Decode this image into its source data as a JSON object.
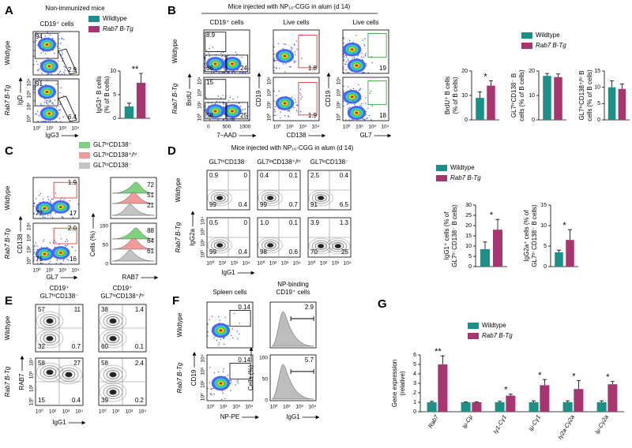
{
  "legend": [
    {
      "name": "Wildtype",
      "color": "#1c8f88"
    },
    {
      "name": "Rab7 B-Tg",
      "color": "#a6366f"
    }
  ],
  "log_ticks": [
    "10⁰",
    "10²",
    "10³",
    "10⁴"
  ],
  "row_labels": [
    "Wildtype",
    "Rab7 B-Tg"
  ],
  "A": {
    "letter": "A",
    "title": "Non-immunized mice",
    "gate": "CD19⁺ cells",
    "y_axis": "IgD",
    "x_axis": "IgG3",
    "plots": [
      [
        "94",
        "2.9"
      ],
      [
        "91",
        "6.4"
      ]
    ],
    "chart": {
      "y_label": [
        "IgG3⁺ B cells",
        "(% of B cells)"
      ],
      "ylim": [
        0,
        10
      ],
      "yticks": [
        0,
        5,
        10
      ],
      "values": [
        2.5,
        7.5
      ],
      "errors": [
        0.7,
        2.0
      ],
      "significance": "**"
    }
  },
  "B": {
    "letter": "B",
    "title": "Mice injected with NP₁₆-CGG in alum (d 14)",
    "columns": [
      {
        "gate": "CD19⁺ cells",
        "y_axis": "BrdU",
        "x_axis": "7–AAD",
        "x_ticks": [
          0,
          500,
          1000
        ],
        "plots": [
          [
            "8.9",
            "66",
            "24"
          ],
          [
            "15",
            "58",
            "25"
          ]
        ]
      },
      {
        "gate": "Live cells",
        "y_axis": "CD19",
        "x_axis": "CD138",
        "plots": [
          [
            "1.8"
          ],
          [
            "1.9"
          ]
        ]
      },
      {
        "gate": "Live cells",
        "y_axis": "CD19",
        "x_axis": "GL7",
        "plots": [
          [
            "19"
          ],
          [
            "18"
          ]
        ]
      }
    ],
    "charts": [
      {
        "y_label": [
          "BrdU⁺ B cells",
          "(% of B cells)"
        ],
        "ylim": [
          0,
          20
        ],
        "yticks": [
          0,
          10,
          20
        ],
        "values": [
          9,
          14
        ],
        "errors": [
          2.5,
          2
        ],
        "significance": "*"
      },
      {
        "y_label": [
          "GL7ʰⁱCD138⁻ B",
          "cells (% of B cells)"
        ],
        "ylim": [
          0,
          20
        ],
        "yticks": [
          0,
          10,
          20
        ],
        "values": [
          18,
          17.5
        ],
        "errors": [
          1,
          1.3
        ]
      },
      {
        "y_label": [
          "GL7ʰⁱCD138⁺/ʰⁱ B",
          "cells (% of B cells)"
        ],
        "ylim": [
          0,
          15
        ],
        "yticks": [
          0,
          5,
          10,
          15
        ],
        "values": [
          10,
          9.5
        ],
        "errors": [
          2,
          1.5
        ]
      }
    ]
  },
  "C": {
    "letter": "C",
    "legend": [
      {
        "name": "GL7ʰⁱCD138⁻",
        "color": "#7ed27e"
      },
      {
        "name": "GL7ˡᵒCD138⁺/ʰⁱ",
        "color": "#f29b9b"
      },
      {
        "name": "GL7ˡᵒCD138⁻",
        "color": "#c4c4c4"
      }
    ],
    "y_axis": "CD138",
    "x_axis": "GL7",
    "plots": [
      [
        "1.9",
        "72",
        "17"
      ],
      [
        "2.0",
        "71",
        "16"
      ]
    ],
    "hist_y_axis": "Cells (%)",
    "hist_x_axis": "RAB7",
    "hist_yticks": [
      0,
      50,
      100
    ],
    "hists": [
      [
        "72",
        "51",
        "21"
      ],
      [
        "88",
        "64",
        "61"
      ]
    ]
  },
  "D": {
    "letter": "D",
    "title": "Mice injected with NP₁₆-CGG in alum (d 14)",
    "columns": [
      "GL7ʰⁱCD138⁻",
      "GL7ˡᵒCD138⁺/ʰⁱ",
      "GL7ˡᵒCD138⁻"
    ],
    "y_axis": "IgG2a",
    "x_axis": "IgG1",
    "plots": [
      [
        [
          "0.9",
          "0",
          "99",
          "0.4"
        ],
        [
          "0.4",
          "0.1",
          "99",
          "0.7"
        ],
        [
          "2.5",
          "0.4",
          "91",
          "6.5"
        ]
      ],
      [
        [
          "0.5",
          "0",
          "99",
          "0.4"
        ],
        [
          "1.0",
          "0.1",
          "98",
          "0.6"
        ],
        [
          "3.9",
          "1.3",
          "70",
          "25"
        ]
      ]
    ],
    "charts": [
      {
        "y_label": [
          "IgG1⁺ cells (% of",
          "GL7ʰⁱ CD138⁻ B cells)"
        ],
        "ylim": [
          0,
          30
        ],
        "yticks": [
          0,
          5,
          10,
          15,
          20,
          25,
          30
        ],
        "values": [
          8.5,
          18
        ],
        "errors": [
          3.5,
          5
        ],
        "significance": "*"
      },
      {
        "y_label": [
          "IgG2a⁺ cells (% of",
          "GL7ʰⁱ CD138⁻ B cells)"
        ],
        "ylim": [
          0,
          15
        ],
        "yticks": [
          0,
          5,
          10,
          15
        ],
        "values": [
          3.5,
          6.5
        ],
        "errors": [
          0.5,
          2.5
        ],
        "significance": "*"
      }
    ]
  },
  "E": {
    "letter": "E",
    "columns": [
      [
        "CD19⁺",
        "GL7ʰⁱCD138⁻"
      ],
      [
        "CD19⁺",
        "GL7ˡᵒCD138⁺/ʰⁱ"
      ]
    ],
    "y_axis": "RAB7",
    "x_axis": "IgG1",
    "plots": [
      [
        [
          "57",
          "11",
          "32",
          "0.7"
        ],
        [
          "38",
          "1.4",
          "60",
          "0.1"
        ]
      ],
      [
        [
          "58",
          "27",
          "15",
          "0.4"
        ],
        [
          "58",
          "2.4",
          "39",
          "0.2"
        ]
      ]
    ]
  },
  "F": {
    "letter": "F",
    "gate": "Spleen cells",
    "hist_gate": [
      "NP-binding",
      "CD19⁺ cells"
    ],
    "y_axis": "CD19",
    "x_axis": "NP-PE",
    "plots": [
      [
        "0.14"
      ],
      [
        "0.14"
      ]
    ],
    "hist_y_axis": "Cells (%)",
    "hist_x_axis": "IgG1",
    "hist_yticks": [
      0,
      50,
      100
    ],
    "hists": [
      [
        "2.9"
      ],
      [
        "5.7"
      ]
    ]
  },
  "G": {
    "letter": "G",
    "y_label": [
      "Gene expression",
      "(relative)"
    ],
    "ylim": [
      0,
      6
    ],
    "yticks": [
      0,
      1,
      2,
      3,
      4,
      5,
      6
    ],
    "categories": [
      "Rab7",
      "Iμ-Cμ",
      "Iγ1-Cγ1",
      "Iμ-Cγ1",
      "Iγ2a-Cγ2a",
      "Iμ-Cγ2a"
    ],
    "series": [
      {
        "values": [
          1,
          1,
          1,
          1,
          1,
          1
        ],
        "errors": [
          0.1,
          0.05,
          0.1,
          0.15,
          0.15,
          0.15
        ]
      },
      {
        "values": [
          5.0,
          1.0,
          1.7,
          2.8,
          2.4,
          2.9
        ],
        "errors": [
          0.9,
          0.05,
          0.15,
          0.6,
          0.9,
          0.3
        ]
      }
    ],
    "significance": [
      "**",
      null,
      "*",
      "*",
      "*",
      "*"
    ]
  }
}
